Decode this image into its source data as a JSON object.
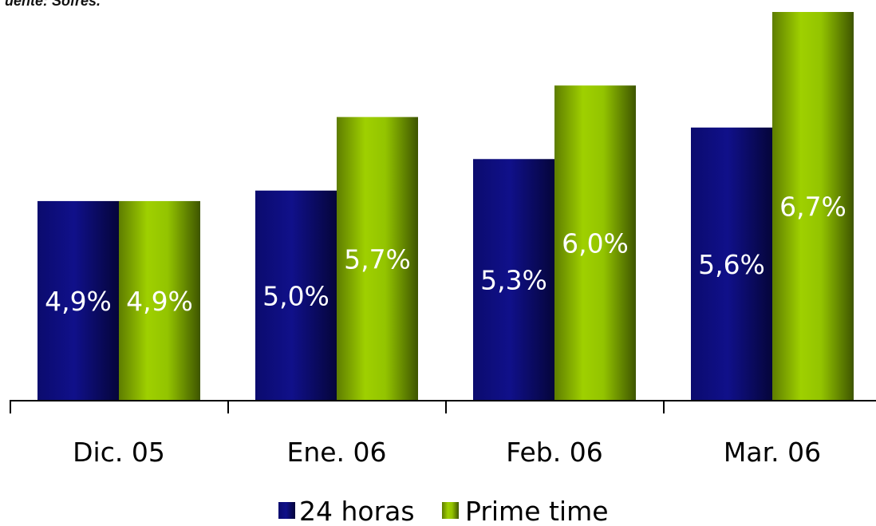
{
  "source_note": "uente: Sofres.",
  "chart_data": {
    "type": "bar",
    "categories": [
      "Dic. 05",
      "Ene. 06",
      "Feb. 06",
      "Mar. 06"
    ],
    "series": [
      {
        "name": "24 horas",
        "values": [
          4.9,
          5.0,
          5.3,
          5.6
        ],
        "labels": [
          "4,9%",
          "5,0%",
          "5,3%",
          "5,6%"
        ],
        "color": "#0a0a78"
      },
      {
        "name": "Prime time",
        "values": [
          4.9,
          5.7,
          6.0,
          6.7
        ],
        "labels": [
          "4,9%",
          "5,7%",
          "6,0%",
          "6,7%"
        ],
        "color": "#8fbf00"
      }
    ],
    "ylim": [
      3.0,
      6.7
    ],
    "grid": false,
    "legend_position": "bottom-center"
  }
}
